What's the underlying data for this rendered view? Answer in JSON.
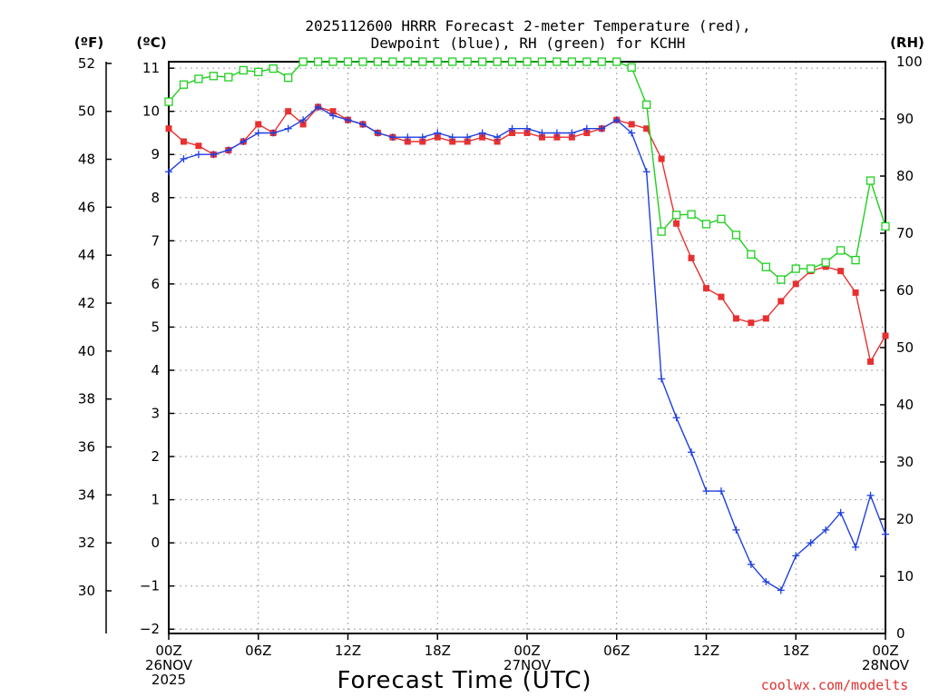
{
  "chart_data": {
    "type": "line",
    "title_line1": "2025112600 HRRR Forecast 2-meter Temperature (red),",
    "title_line2": "Dewpoint (blue), RH (green) for KCHH",
    "unit_f": "(ºF)",
    "unit_c": "(ºC)",
    "unit_rh": "(RH)",
    "xlabel": "Forecast Time (UTC)",
    "credit": "coolwx.com/modelts",
    "x_ticks": [
      {
        "hour": 0,
        "lines": [
          "00Z",
          "26NOV",
          "2025"
        ]
      },
      {
        "hour": 6,
        "lines": [
          "06Z"
        ]
      },
      {
        "hour": 12,
        "lines": [
          "12Z"
        ]
      },
      {
        "hour": 18,
        "lines": [
          "18Z"
        ]
      },
      {
        "hour": 24,
        "lines": [
          "00Z",
          "27NOV"
        ]
      },
      {
        "hour": 30,
        "lines": [
          "06Z"
        ]
      },
      {
        "hour": 36,
        "lines": [
          "12Z"
        ]
      },
      {
        "hour": 42,
        "lines": [
          "18Z"
        ]
      },
      {
        "hour": 48,
        "lines": [
          "00Z",
          "28NOV"
        ]
      }
    ],
    "xlim": [
      0,
      48
    ],
    "ylim_c": [
      -2.1,
      11.15
    ],
    "ylim_rh": [
      0,
      100
    ],
    "c_ticks": [
      -2,
      -1,
      0,
      1,
      2,
      3,
      4,
      5,
      6,
      7,
      8,
      9,
      10,
      11
    ],
    "f_ticks": [
      30,
      32,
      34,
      36,
      38,
      40,
      42,
      44,
      46,
      48,
      50,
      52
    ],
    "rh_ticks": [
      0,
      10,
      20,
      30,
      40,
      50,
      60,
      70,
      80,
      90,
      100
    ],
    "grid": true,
    "series": [
      {
        "name": "Temperature",
        "color": "#e83030",
        "marker": "square-filled",
        "axis": "c",
        "values": [
          9.6,
          9.3,
          9.2,
          9.0,
          9.1,
          9.3,
          9.7,
          9.5,
          10.0,
          9.7,
          10.1,
          10.0,
          9.8,
          9.7,
          9.5,
          9.4,
          9.3,
          9.3,
          9.4,
          9.3,
          9.3,
          9.4,
          9.3,
          9.5,
          9.5,
          9.4,
          9.4,
          9.4,
          9.5,
          9.6,
          9.8,
          9.7,
          9.6,
          8.9,
          7.4,
          6.6,
          5.9,
          5.7,
          5.2,
          5.1,
          5.2,
          5.6,
          6.0,
          6.3,
          6.4,
          6.3,
          5.8,
          4.2,
          4.8
        ]
      },
      {
        "name": "Dewpoint",
        "color": "#2040e0",
        "marker": "plus",
        "axis": "c",
        "values": [
          8.6,
          8.9,
          9.0,
          9.0,
          9.1,
          9.3,
          9.5,
          9.5,
          9.6,
          9.8,
          10.1,
          9.9,
          9.8,
          9.7,
          9.5,
          9.4,
          9.4,
          9.4,
          9.5,
          9.4,
          9.4,
          9.5,
          9.4,
          9.6,
          9.6,
          9.5,
          9.5,
          9.5,
          9.6,
          9.6,
          9.8,
          9.5,
          8.6,
          3.8,
          2.9,
          2.1,
          1.2,
          1.2,
          0.3,
          -0.5,
          -0.9,
          -1.1,
          -0.3,
          0.0,
          0.3,
          0.7,
          -0.1,
          1.1,
          0.2
        ]
      },
      {
        "name": "RH",
        "color": "#20d020",
        "marker": "square-open",
        "axis": "rh",
        "values": [
          93,
          96,
          97,
          97.5,
          97.3,
          98.5,
          98.2,
          98.8,
          97.2,
          100,
          100,
          100,
          100,
          100,
          100,
          100,
          100,
          100,
          100,
          100,
          100,
          100,
          100,
          100,
          100,
          100,
          100,
          100,
          100,
          100,
          100,
          99,
          92.5,
          70.3,
          73.2,
          73.3,
          71.6,
          72.5,
          69.7,
          66.3,
          64.1,
          61.9,
          63.8,
          63.8,
          64.9,
          67.0,
          65.3,
          79.2,
          71.2
        ]
      }
    ]
  }
}
